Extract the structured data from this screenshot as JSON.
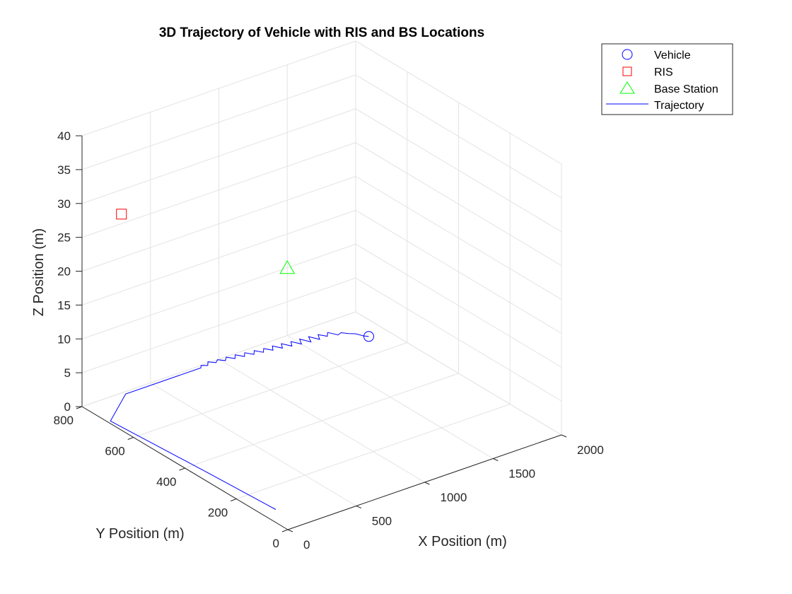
{
  "chart_data": {
    "type": "line",
    "title": "3D Trajectory of Vehicle with RIS and BS Locations",
    "xlabel": "X Position (m)",
    "ylabel": "Y Position (m)",
    "zlabel": "Z Position (m)",
    "xlim": [
      0,
      2000
    ],
    "ylim": [
      0,
      800
    ],
    "zlim": [
      0,
      40
    ],
    "xticks": [
      0,
      500,
      1000,
      1500,
      2000
    ],
    "yticks": [
      0,
      200,
      400,
      600,
      800
    ],
    "zticks": [
      0,
      5,
      10,
      15,
      20,
      25,
      30,
      35,
      40
    ],
    "grid": true,
    "legend_position": "top-right",
    "legend": [
      {
        "label": "Vehicle",
        "marker": "circle",
        "color": "#0000ff"
      },
      {
        "label": "RIS",
        "marker": "square",
        "color": "#ff0000"
      },
      {
        "label": "Base Station",
        "marker": "triangle",
        "color": "#00ff00"
      },
      {
        "label": "Trajectory",
        "marker": "line",
        "color": "#0000ff"
      }
    ],
    "series": [
      {
        "name": "Trajectory",
        "color": "#0000ff",
        "points": [
          [
            100,
            100,
            0
          ],
          [
            70,
            350,
            0
          ],
          [
            20,
            700,
            0
          ],
          [
            300,
            790,
            0
          ],
          [
            850,
            790,
            0
          ],
          [
            870,
            800,
            0
          ],
          [
            900,
            790,
            0
          ],
          [
            930,
            805,
            0
          ],
          [
            960,
            790,
            0
          ],
          [
            990,
            800,
            0
          ],
          [
            1020,
            785,
            0
          ],
          [
            1050,
            798,
            0
          ],
          [
            1080,
            780,
            0
          ],
          [
            1110,
            795,
            0
          ],
          [
            1140,
            775,
            0
          ],
          [
            1170,
            790,
            0
          ],
          [
            1200,
            770,
            0
          ],
          [
            1230,
            785,
            0
          ],
          [
            1260,
            765,
            0
          ],
          [
            1290,
            780,
            0
          ],
          [
            1320,
            760,
            0
          ],
          [
            1350,
            778,
            0
          ],
          [
            1380,
            755,
            0
          ],
          [
            1410,
            775,
            0
          ],
          [
            1440,
            750,
            0
          ],
          [
            1470,
            770,
            0
          ],
          [
            1500,
            745,
            0
          ],
          [
            1530,
            768,
            0
          ],
          [
            1560,
            740,
            0
          ],
          [
            1590,
            765,
            0
          ],
          [
            1620,
            738,
            0
          ],
          [
            1650,
            760,
            0
          ],
          [
            1680,
            740,
            0
          ],
          [
            1710,
            755,
            0
          ],
          [
            1740,
            730,
            0
          ],
          [
            1770,
            735,
            0
          ],
          [
            1800,
            720,
            0
          ],
          [
            1830,
            710,
            0
          ],
          [
            1850,
            690,
            0
          ],
          [
            1870,
            680,
            0
          ]
        ]
      },
      {
        "name": "Vehicle",
        "color": "#0000ff",
        "points": [
          [
            1870,
            680,
            0
          ]
        ]
      },
      {
        "name": "RIS",
        "color": "#ff0000",
        "points": [
          [
            100,
            700,
            30
          ]
        ]
      },
      {
        "name": "Base Station",
        "color": "#00ff00",
        "points": [
          [
            1500,
            800,
            10
          ]
        ]
      }
    ]
  }
}
